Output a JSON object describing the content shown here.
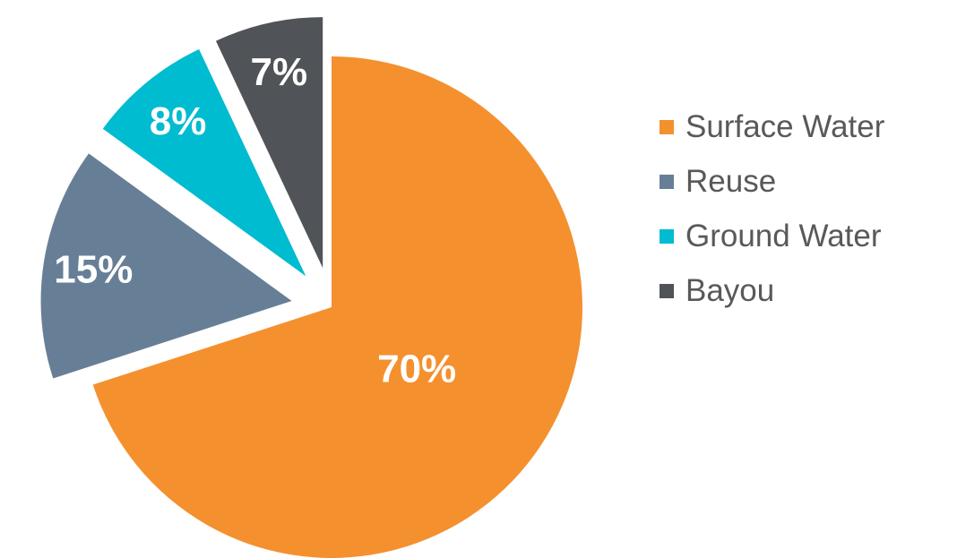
{
  "chart_data": {
    "type": "pie",
    "start_angle_deg": 0,
    "direction": "clockwise",
    "legend_position": "right",
    "slices": [
      {
        "name": "Surface Water",
        "value": 70,
        "label": "70%",
        "color": "#F5902F",
        "exploded": false
      },
      {
        "name": "Reuse",
        "value": 15,
        "label": "15%",
        "color": "#677F96",
        "exploded": true
      },
      {
        "name": "Ground Water",
        "value": 8,
        "label": "8%",
        "color": "#00BCD1",
        "exploded": true
      },
      {
        "name": "Bayou",
        "value": 7,
        "label": "7%",
        "color": "#505357",
        "exploded": true
      }
    ]
  }
}
